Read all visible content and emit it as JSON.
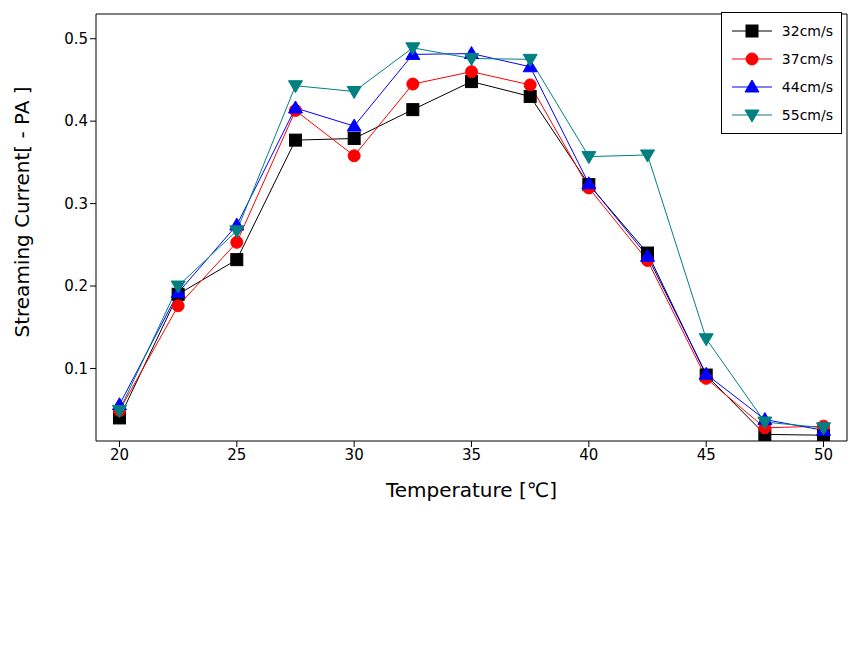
{
  "chart_data": {
    "type": "line",
    "x_label": "Temperature [℃]",
    "y_label": "Streaming Current[ - PA ]",
    "x": [
      20,
      22.5,
      25,
      27.5,
      30,
      32.5,
      35,
      37.5,
      40,
      42.5,
      45,
      47.5,
      50
    ],
    "xlim": [
      19,
      51
    ],
    "xticks": [
      20,
      25,
      30,
      35,
      40,
      45,
      50
    ],
    "ylim": [
      0.012,
      0.53
    ],
    "yticks": [
      0.1,
      0.2,
      0.3,
      0.4,
      0.5
    ],
    "grid": false,
    "legend": "upper right",
    "series": [
      {
        "name": "32cm/s",
        "color": "#000000",
        "marker": "square",
        "values": [
          0.04,
          0.19,
          0.232,
          0.377,
          0.379,
          0.414,
          0.448,
          0.43,
          0.323,
          0.24,
          0.092,
          0.02,
          0.019
        ]
      },
      {
        "name": "37cm/s",
        "color": "#ff0000",
        "marker": "circle",
        "values": [
          0.049,
          0.176,
          0.253,
          0.413,
          0.358,
          0.445,
          0.46,
          0.444,
          0.319,
          0.231,
          0.088,
          0.028,
          0.03
        ]
      },
      {
        "name": "44cm/s",
        "color": "#0000ff",
        "marker": "triangle",
        "values": [
          0.056,
          0.192,
          0.274,
          0.416,
          0.394,
          0.481,
          0.482,
          0.466,
          0.324,
          0.236,
          0.093,
          0.038,
          0.025
        ]
      },
      {
        "name": "55cm/s",
        "color": "#008080",
        "marker": "triangle-down",
        "values": [
          0.049,
          0.2,
          0.267,
          0.443,
          0.436,
          0.489,
          0.476,
          0.475,
          0.357,
          0.359,
          0.136,
          0.035,
          0.028
        ]
      }
    ]
  }
}
